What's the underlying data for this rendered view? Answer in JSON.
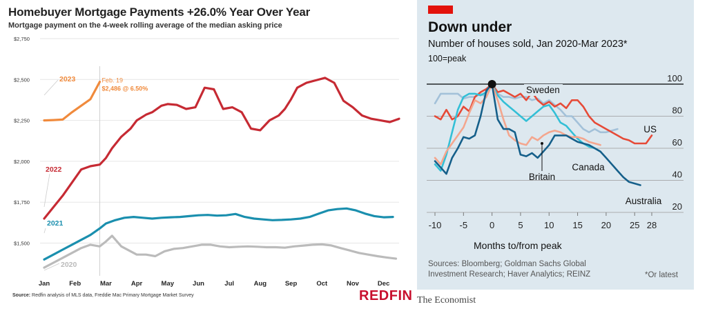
{
  "left": {
    "title": "Homebuyer Mortgage Payments +26.0% Year Over Year",
    "subtitle": "Mortgage payment on the 4-week rolling average of the median asking price",
    "source_label": "Source:",
    "source_text": "Redfin analysis of MLS data, Freddie Mac Primary Mortgage Market Survey",
    "brand": "REDFIN",
    "annotation_line1": "Feb. 19",
    "annotation_line2": "$2,486 @ 6.50%"
  },
  "right": {
    "title": "Down under",
    "subtitle": "Number of houses sold, Jan 2020-Mar 2023*",
    "note": "100=peak",
    "source": "Sources: Bloomberg; Goldman Sachs Global Investment Research; Haver Analytics; REINZ",
    "footnote": "*Or latest",
    "brand": "The Economist"
  },
  "chart_data": [
    {
      "type": "line",
      "title": "Homebuyer Mortgage Payments +26.0% Year Over Year",
      "subtitle": "Mortgage payment on the 4-week rolling average of the median asking price",
      "xlabel": "",
      "ylabel": "",
      "x_range": [
        0,
        11.5
      ],
      "ylim": [
        1300,
        2750
      ],
      "xticks": [
        0,
        1,
        2,
        3,
        4,
        5,
        6,
        7,
        8,
        9,
        10,
        11
      ],
      "xticklabels": [
        "Jan",
        "Feb",
        "Mar",
        "Apr",
        "May",
        "Jun",
        "Jul",
        "Aug",
        "Sep",
        "Oct",
        "Nov",
        "Dec"
      ],
      "yticks": [
        1500,
        1750,
        2000,
        2250,
        2500,
        2750
      ],
      "yticklabels": [
        "$1,500",
        "$1,750",
        "$2,000",
        "$2,250",
        "$2,500",
        "$2,750"
      ],
      "grid": "horizontal",
      "legend": "inline labels",
      "series": [
        {
          "name": "2020",
          "color": "#bbbbbb",
          "x": [
            0,
            0.3,
            0.6,
            0.9,
            1.2,
            1.5,
            1.8,
            2.0,
            2.2,
            2.5,
            2.8,
            3.0,
            3.3,
            3.6,
            3.9,
            4.2,
            4.5,
            4.8,
            5.1,
            5.4,
            5.7,
            6.0,
            6.3,
            6.6,
            6.9,
            7.2,
            7.5,
            7.8,
            8.1,
            8.4,
            8.7,
            9.0,
            9.3,
            9.6,
            9.9,
            10.2,
            10.5,
            10.8,
            11.1,
            11.4
          ],
          "y": [
            1350,
            1380,
            1410,
            1440,
            1470,
            1490,
            1480,
            1510,
            1545,
            1480,
            1450,
            1430,
            1430,
            1420,
            1450,
            1465,
            1470,
            1480,
            1490,
            1490,
            1480,
            1475,
            1478,
            1480,
            1478,
            1475,
            1475,
            1472,
            1480,
            1485,
            1490,
            1492,
            1486,
            1470,
            1455,
            1440,
            1430,
            1420,
            1412,
            1405
          ]
        },
        {
          "name": "2021",
          "color": "#1a8fae",
          "x": [
            0,
            0.3,
            0.6,
            0.9,
            1.2,
            1.5,
            1.8,
            2.0,
            2.3,
            2.6,
            2.9,
            3.2,
            3.5,
            3.8,
            4.1,
            4.4,
            4.7,
            5.0,
            5.3,
            5.6,
            5.9,
            6.2,
            6.5,
            6.8,
            7.1,
            7.4,
            7.7,
            8.0,
            8.3,
            8.6,
            8.9,
            9.2,
            9.5,
            9.8,
            10.1,
            10.4,
            10.7,
            11.0,
            11.3
          ],
          "y": [
            1400,
            1430,
            1460,
            1490,
            1520,
            1550,
            1590,
            1620,
            1640,
            1655,
            1660,
            1655,
            1650,
            1655,
            1658,
            1660,
            1665,
            1670,
            1672,
            1668,
            1670,
            1678,
            1660,
            1650,
            1645,
            1640,
            1642,
            1645,
            1650,
            1660,
            1680,
            1700,
            1708,
            1712,
            1700,
            1680,
            1665,
            1658,
            1660
          ]
        },
        {
          "name": "2022",
          "color": "#c62a33",
          "x": [
            0,
            0.3,
            0.6,
            0.9,
            1.2,
            1.5,
            1.8,
            2.0,
            2.2,
            2.5,
            2.8,
            3.0,
            3.3,
            3.5,
            3.8,
            4.0,
            4.3,
            4.6,
            4.9,
            5.2,
            5.5,
            5.8,
            6.1,
            6.4,
            6.7,
            7.0,
            7.3,
            7.6,
            7.8,
            8.0,
            8.2,
            8.5,
            8.8,
            9.1,
            9.4,
            9.7,
            10.0,
            10.3,
            10.6,
            10.9,
            11.2,
            11.5
          ],
          "y": [
            1650,
            1720,
            1790,
            1870,
            1950,
            1970,
            1980,
            2020,
            2080,
            2150,
            2200,
            2250,
            2285,
            2300,
            2340,
            2350,
            2345,
            2320,
            2330,
            2450,
            2440,
            2320,
            2330,
            2300,
            2200,
            2190,
            2250,
            2280,
            2320,
            2380,
            2450,
            2480,
            2495,
            2510,
            2480,
            2370,
            2330,
            2280,
            2260,
            2250,
            2240,
            2260
          ]
        },
        {
          "name": "2023",
          "color": "#f08a3c",
          "x": [
            0,
            0.3,
            0.6,
            0.9,
            1.2,
            1.5,
            1.8
          ],
          "y": [
            2250,
            2252,
            2255,
            2300,
            2340,
            2380,
            2486
          ]
        }
      ]
    },
    {
      "type": "line",
      "title": "Down under",
      "subtitle": "Number of houses sold, Jan 2020-Mar 2023*",
      "xlabel": "Months to/from peak",
      "ylabel": "",
      "ylabel_note": "100=peak",
      "x_range": [
        -10,
        28
      ],
      "ylim": [
        20,
        100
      ],
      "xticks": [
        -10,
        -5,
        0,
        5,
        10,
        15,
        20,
        25,
        28
      ],
      "xticklabels": [
        "-10",
        "-5",
        "0",
        "5",
        "10",
        "15",
        "20",
        "25",
        "28"
      ],
      "yticks": [
        20,
        40,
        60,
        80,
        100
      ],
      "yticklabels": [
        "20",
        "40",
        "60",
        "80",
        "100"
      ],
      "grid": "horizontal",
      "legend": "inline labels",
      "peak_marker": [
        0,
        100
      ],
      "series": [
        {
          "name": "Sweden",
          "color": "#a3c1d9",
          "x": [
            -10,
            -9,
            -8,
            -7,
            -6,
            -5,
            -4,
            -3,
            -2,
            -1,
            0,
            1,
            2,
            3,
            4,
            5,
            6,
            7,
            8,
            9,
            10,
            11,
            12,
            13,
            14,
            15,
            16,
            17,
            18,
            19,
            20,
            21,
            22
          ],
          "y": [
            88,
            94,
            94,
            94,
            94,
            91,
            92,
            92,
            94,
            92,
            100,
            94,
            92,
            92,
            91,
            92,
            92,
            90,
            91,
            88,
            90,
            87,
            84,
            80,
            80,
            76,
            72,
            70,
            72,
            70,
            70,
            71,
            72
          ]
        },
        {
          "name": "US",
          "color": "#e64a37",
          "x": [
            -10,
            -9,
            -8,
            -7,
            -6,
            -5,
            -4,
            -3,
            -2,
            -1,
            0,
            1,
            2,
            3,
            4,
            5,
            6,
            7,
            8,
            9,
            10,
            11,
            12,
            13,
            14,
            15,
            16,
            17,
            18,
            19,
            20,
            21,
            22,
            23,
            24,
            25,
            26,
            27,
            28
          ],
          "y": [
            80,
            78,
            84,
            78,
            80,
            86,
            83,
            92,
            95,
            97,
            100,
            95,
            96,
            94,
            92,
            94,
            90,
            95,
            90,
            87,
            89,
            86,
            88,
            85,
            90,
            90,
            86,
            80,
            76,
            74,
            72,
            70,
            68,
            66,
            65,
            63,
            63,
            63,
            68
          ]
        },
        {
          "name": "Canada",
          "color": "#33bfd6",
          "x": [
            -10,
            -9,
            -8,
            -7,
            -6,
            -5,
            -4,
            -3,
            -2,
            -1,
            0,
            1,
            2,
            3,
            4,
            5,
            6,
            7,
            8,
            9,
            10,
            11,
            12,
            13,
            14,
            15,
            16,
            17,
            18,
            19
          ],
          "y": [
            50,
            46,
            56,
            70,
            84,
            92,
            94,
            94,
            93,
            95,
            100,
            93,
            89,
            86,
            83,
            80,
            77,
            80,
            83,
            86,
            87,
            82,
            76,
            74,
            70,
            66,
            63,
            61,
            60,
            58
          ]
        },
        {
          "name": "Britain",
          "color": "#f4a68e",
          "x": [
            -10,
            -9,
            -8,
            -7,
            -6,
            -5,
            -4,
            -3,
            -2,
            -1,
            0,
            1,
            2,
            3,
            4,
            5,
            6,
            7,
            8,
            9,
            10,
            11,
            12,
            13,
            14,
            15,
            16,
            17,
            18,
            19
          ],
          "y": [
            54,
            50,
            58,
            63,
            68,
            73,
            82,
            90,
            88,
            92,
            100,
            90,
            78,
            68,
            65,
            63,
            62,
            67,
            65,
            68,
            70,
            71,
            70,
            68,
            67,
            67,
            66,
            64,
            63,
            62
          ]
        },
        {
          "name": "Australia",
          "color": "#155f8a",
          "x": [
            -10,
            -9,
            -8,
            -7,
            -6,
            -5,
            -4,
            -3,
            -2,
            -1,
            0,
            1,
            2,
            3,
            4,
            5,
            6,
            7,
            8,
            9,
            10,
            11,
            12,
            13,
            14,
            15,
            16,
            17,
            18,
            19,
            20,
            21,
            22,
            23,
            24,
            25,
            26
          ],
          "y": [
            52,
            48,
            44,
            54,
            60,
            67,
            66,
            68,
            80,
            96,
            100,
            78,
            72,
            72,
            70,
            56,
            55,
            57,
            54,
            58,
            62,
            68,
            68,
            68,
            66,
            64,
            63,
            62,
            60,
            58,
            54,
            50,
            46,
            42,
            39,
            38,
            37
          ]
        }
      ]
    }
  ]
}
